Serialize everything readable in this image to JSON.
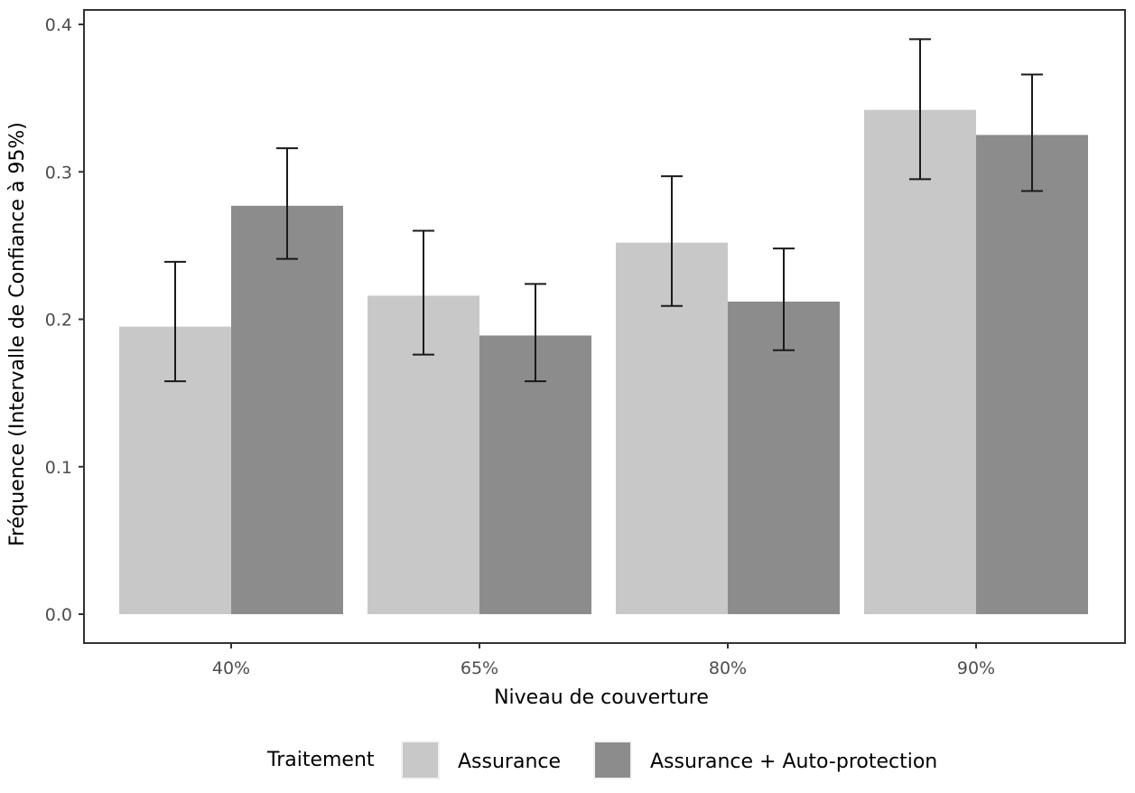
{
  "chart_data": {
    "type": "bar",
    "xlabel": "Niveau de couverture",
    "ylabel": "Fréquence (Intervalle de Confiance à 95%)",
    "ylim": [
      0,
      0.4
    ],
    "yticks": [
      "0.0",
      "0.1",
      "0.2",
      "0.3",
      "0.4"
    ],
    "categories": [
      "40%",
      "65%",
      "80%",
      "90%"
    ],
    "series": [
      {
        "name": "Assurance",
        "color": "#c8c8c8",
        "values": [
          0.195,
          0.216,
          0.252,
          0.342
        ],
        "ci_low": [
          0.158,
          0.176,
          0.209,
          0.295
        ],
        "ci_high": [
          0.239,
          0.26,
          0.297,
          0.39
        ]
      },
      {
        "name": "Assurance + Auto-protection",
        "color": "#8c8c8c",
        "values": [
          0.277,
          0.189,
          0.212,
          0.325
        ],
        "ci_low": [
          0.241,
          0.158,
          0.179,
          0.287
        ],
        "ci_high": [
          0.316,
          0.224,
          0.248,
          0.366
        ]
      }
    ],
    "grid": false,
    "legend": {
      "title": "Traitement",
      "position": "bottom"
    }
  }
}
